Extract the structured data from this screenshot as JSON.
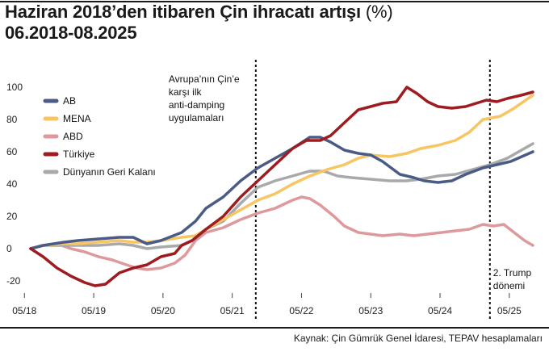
{
  "title": "Haziran 2018’den itibaren Çin ihracatı artışı",
  "title_unit": "(%)",
  "subtitle": "06.2018-08.2025",
  "source": "Kaynak: Çin Gümrük Genel İdaresi, TEPAV hesaplamaları",
  "chart_data": {
    "type": "line",
    "title": "Haziran 2018’den itibaren Çin ihracatı artışı (%)",
    "subtitle": "06.2018-08.2025",
    "xlabel": "",
    "ylabel": "",
    "xlim": [
      2018.42,
      2025.67
    ],
    "ylim": [
      -25,
      105
    ],
    "yticks": [
      -20,
      0,
      20,
      40,
      60,
      80,
      100
    ],
    "xticks": [
      {
        "label": "05/18",
        "x": 2018.33
      },
      {
        "label": "05/19",
        "x": 2019.33
      },
      {
        "label": "05/20",
        "x": 2020.33
      },
      {
        "label": "05/21",
        "x": 2021.33
      },
      {
        "label": "05/22",
        "x": 2022.33
      },
      {
        "label": "05/23",
        "x": 2023.33
      },
      {
        "label": "05/24",
        "x": 2024.33
      },
      {
        "label": "05/25",
        "x": 2025.33
      }
    ],
    "series": [
      {
        "name": "AB",
        "color": "#4a5b85",
        "points": [
          [
            2018.42,
            0
          ],
          [
            2018.6,
            2
          ],
          [
            2018.9,
            4
          ],
          [
            2019.1,
            5
          ],
          [
            2019.4,
            6
          ],
          [
            2019.7,
            7
          ],
          [
            2019.9,
            7
          ],
          [
            2020.1,
            3
          ],
          [
            2020.3,
            5
          ],
          [
            2020.6,
            10
          ],
          [
            2020.8,
            17
          ],
          [
            2020.95,
            25
          ],
          [
            2021.2,
            32
          ],
          [
            2021.45,
            42
          ],
          [
            2021.7,
            50
          ],
          [
            2021.95,
            56
          ],
          [
            2022.2,
            62
          ],
          [
            2022.45,
            69
          ],
          [
            2022.6,
            69
          ],
          [
            2022.75,
            66
          ],
          [
            2022.95,
            61
          ],
          [
            2023.15,
            59
          ],
          [
            2023.33,
            58
          ],
          [
            2023.5,
            54
          ],
          [
            2023.75,
            46
          ],
          [
            2023.95,
            44
          ],
          [
            2024.1,
            42
          ],
          [
            2024.3,
            41
          ],
          [
            2024.5,
            42
          ],
          [
            2024.7,
            46
          ],
          [
            2024.95,
            50
          ],
          [
            2025.15,
            52
          ],
          [
            2025.35,
            54
          ],
          [
            2025.67,
            60
          ]
        ]
      },
      {
        "name": "MENA",
        "color": "#f7c562",
        "points": [
          [
            2018.42,
            0
          ],
          [
            2018.6,
            2
          ],
          [
            2018.9,
            3
          ],
          [
            2019.1,
            3
          ],
          [
            2019.4,
            4
          ],
          [
            2019.7,
            5
          ],
          [
            2019.9,
            4
          ],
          [
            2020.1,
            4
          ],
          [
            2020.3,
            5
          ],
          [
            2020.6,
            7
          ],
          [
            2020.8,
            8
          ],
          [
            2020.95,
            12
          ],
          [
            2021.2,
            18
          ],
          [
            2021.45,
            24
          ],
          [
            2021.7,
            30
          ],
          [
            2021.95,
            34
          ],
          [
            2022.2,
            40
          ],
          [
            2022.45,
            45
          ],
          [
            2022.7,
            49
          ],
          [
            2022.95,
            52
          ],
          [
            2023.15,
            56
          ],
          [
            2023.33,
            58
          ],
          [
            2023.6,
            57
          ],
          [
            2023.85,
            59
          ],
          [
            2024.05,
            62
          ],
          [
            2024.3,
            64
          ],
          [
            2024.55,
            67
          ],
          [
            2024.75,
            72
          ],
          [
            2024.95,
            80
          ],
          [
            2025.2,
            82
          ],
          [
            2025.4,
            87
          ],
          [
            2025.67,
            95
          ]
        ]
      },
      {
        "name": "ABD",
        "color": "#dd999b",
        "points": [
          [
            2018.42,
            0
          ],
          [
            2018.6,
            2
          ],
          [
            2018.8,
            3
          ],
          [
            2019.0,
            0
          ],
          [
            2019.2,
            -2
          ],
          [
            2019.4,
            -5
          ],
          [
            2019.6,
            -7
          ],
          [
            2019.8,
            -10
          ],
          [
            2019.95,
            -12
          ],
          [
            2020.1,
            -13
          ],
          [
            2020.3,
            -12
          ],
          [
            2020.5,
            -9
          ],
          [
            2020.65,
            -4
          ],
          [
            2020.8,
            5
          ],
          [
            2020.95,
            10
          ],
          [
            2021.2,
            13
          ],
          [
            2021.45,
            18
          ],
          [
            2021.7,
            22
          ],
          [
            2021.95,
            25
          ],
          [
            2022.2,
            30
          ],
          [
            2022.33,
            32
          ],
          [
            2022.45,
            31
          ],
          [
            2022.6,
            27
          ],
          [
            2022.8,
            20
          ],
          [
            2022.95,
            14
          ],
          [
            2023.15,
            10
          ],
          [
            2023.33,
            9
          ],
          [
            2023.5,
            8
          ],
          [
            2023.75,
            9
          ],
          [
            2023.95,
            8
          ],
          [
            2024.15,
            9
          ],
          [
            2024.35,
            10
          ],
          [
            2024.55,
            11
          ],
          [
            2024.75,
            12
          ],
          [
            2024.95,
            15
          ],
          [
            2025.1,
            14
          ],
          [
            2025.25,
            15
          ],
          [
            2025.4,
            10
          ],
          [
            2025.55,
            5
          ],
          [
            2025.67,
            2
          ]
        ]
      },
      {
        "name": "Türkiye",
        "color": "#9e1b20",
        "points": [
          [
            2018.42,
            0
          ],
          [
            2018.6,
            -5
          ],
          [
            2018.8,
            -12
          ],
          [
            2019.0,
            -17
          ],
          [
            2019.2,
            -21
          ],
          [
            2019.35,
            -23
          ],
          [
            2019.5,
            -22
          ],
          [
            2019.7,
            -15
          ],
          [
            2019.9,
            -12
          ],
          [
            2020.1,
            -10
          ],
          [
            2020.3,
            -5
          ],
          [
            2020.5,
            -3
          ],
          [
            2020.6,
            2
          ],
          [
            2020.75,
            5
          ],
          [
            2020.95,
            12
          ],
          [
            2021.2,
            20
          ],
          [
            2021.45,
            32
          ],
          [
            2021.7,
            42
          ],
          [
            2021.95,
            52
          ],
          [
            2022.2,
            62
          ],
          [
            2022.4,
            67
          ],
          [
            2022.6,
            67
          ],
          [
            2022.75,
            70
          ],
          [
            2022.95,
            78
          ],
          [
            2023.15,
            86
          ],
          [
            2023.33,
            88
          ],
          [
            2023.5,
            90
          ],
          [
            2023.7,
            91
          ],
          [
            2023.85,
            100
          ],
          [
            2024.0,
            96
          ],
          [
            2024.15,
            91
          ],
          [
            2024.3,
            88
          ],
          [
            2024.5,
            87
          ],
          [
            2024.7,
            88
          ],
          [
            2024.85,
            90
          ],
          [
            2025.0,
            92
          ],
          [
            2025.15,
            91
          ],
          [
            2025.3,
            93
          ],
          [
            2025.5,
            95
          ],
          [
            2025.67,
            97
          ]
        ]
      },
      {
        "name": "Dünyanın Geri Kalanı",
        "color": "#a7a9ab",
        "points": [
          [
            2018.42,
            0
          ],
          [
            2018.6,
            2
          ],
          [
            2018.9,
            2
          ],
          [
            2019.1,
            2
          ],
          [
            2019.4,
            2
          ],
          [
            2019.7,
            3
          ],
          [
            2019.9,
            2
          ],
          [
            2020.1,
            0
          ],
          [
            2020.3,
            1
          ],
          [
            2020.6,
            2
          ],
          [
            2020.8,
            6
          ],
          [
            2020.95,
            12
          ],
          [
            2021.2,
            17
          ],
          [
            2021.45,
            28
          ],
          [
            2021.7,
            38
          ],
          [
            2021.95,
            42
          ],
          [
            2022.2,
            45
          ],
          [
            2022.45,
            48
          ],
          [
            2022.65,
            48
          ],
          [
            2022.85,
            45
          ],
          [
            2023.05,
            44
          ],
          [
            2023.33,
            43
          ],
          [
            2023.6,
            42
          ],
          [
            2023.85,
            42
          ],
          [
            2024.05,
            43
          ],
          [
            2024.3,
            45
          ],
          [
            2024.55,
            46
          ],
          [
            2024.8,
            49
          ],
          [
            2025.05,
            52
          ],
          [
            2025.3,
            56
          ],
          [
            2025.67,
            65
          ]
        ]
      }
    ],
    "vlines": [
      {
        "x": 2021.67,
        "label": [
          "Avrupa’nın Çin’e",
          "karşı ilk",
          "anti-damping",
          "uygulamaları"
        ]
      },
      {
        "x": 2025.05,
        "label": [
          "2. Trump",
          "dönemi"
        ]
      }
    ],
    "legend_position": "top-left",
    "grid": false
  }
}
